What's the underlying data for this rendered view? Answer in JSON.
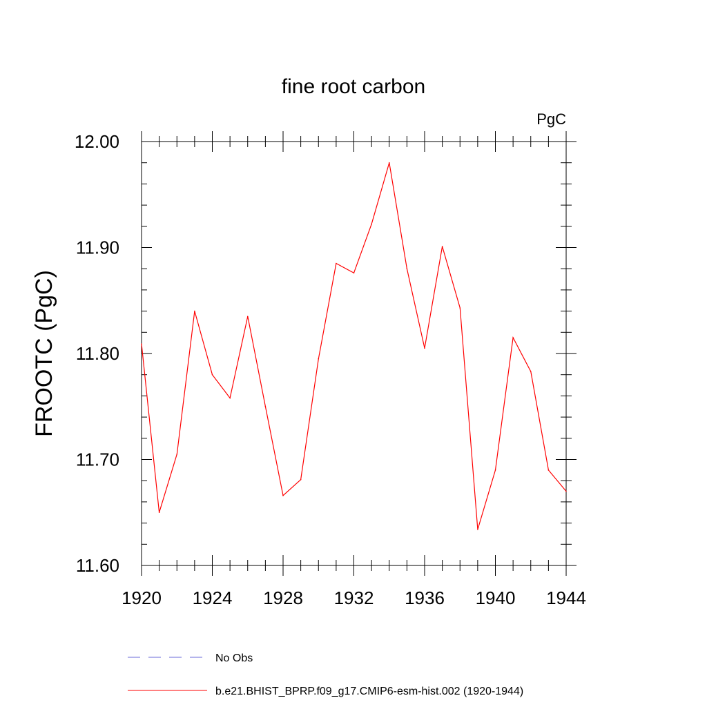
{
  "chart_data": {
    "type": "line",
    "title": "fine root carbon",
    "units": "PgC",
    "ylabel": "FROOTC  (PgC)",
    "xlabel": "",
    "xlim": [
      1920,
      1944
    ],
    "ylim": [
      11.6,
      12.0
    ],
    "x_ticks": [
      "1920",
      "1924",
      "1928",
      "1932",
      "1936",
      "1940",
      "1944"
    ],
    "y_ticks": [
      "11.60",
      "11.70",
      "11.80",
      "11.90",
      "12.00"
    ],
    "grid": false,
    "series": [
      {
        "name": "b.e21.BHIST_BPRP.f09_g17.CMIP6-esm-hist.002 (1920-1944)",
        "color": "#ff0000",
        "style": "solid",
        "x": [
          1920,
          1921,
          1922,
          1923,
          1924,
          1925,
          1926,
          1927,
          1928,
          1929,
          1930,
          1931,
          1932,
          1933,
          1934,
          1935,
          1936,
          1937,
          1938,
          1939,
          1940,
          1941,
          1942,
          1943,
          1944
        ],
        "y": [
          11.809,
          11.65,
          11.705,
          11.84,
          11.78,
          11.758,
          11.835,
          11.75,
          11.666,
          11.681,
          11.795,
          11.885,
          11.876,
          11.922,
          11.98,
          11.88,
          11.805,
          11.901,
          11.843,
          11.634,
          11.69,
          11.815,
          11.783,
          11.69,
          11.67
        ]
      }
    ],
    "legend": {
      "placement": "bottom",
      "entries": [
        {
          "label": "No Obs",
          "color": "#6a6ad8",
          "style": "dashed"
        },
        {
          "label": "b.e21.BHIST_BPRP.f09_g17.CMIP6-esm-hist.002 (1920-1944)",
          "color": "#ff0000",
          "style": "solid"
        }
      ]
    }
  }
}
